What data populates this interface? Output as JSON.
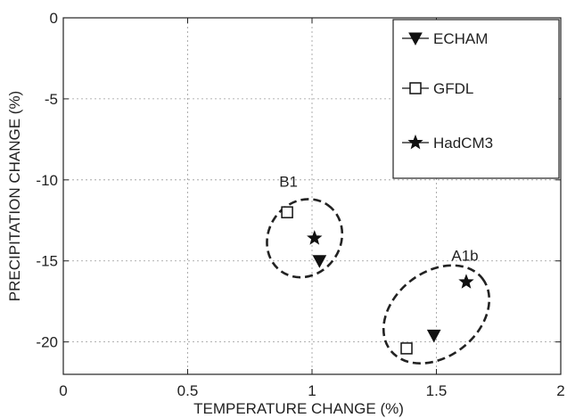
{
  "chart_data": {
    "type": "scatter",
    "xlabel": "TEMPERATURE CHANGE (%)",
    "ylabel": "PRECIPITATION CHANGE (%)",
    "xlim": [
      0,
      2
    ],
    "ylim": [
      -22,
      0
    ],
    "xticks": [
      0,
      0.5,
      1,
      1.5,
      2
    ],
    "xtick_labels": [
      "0",
      "0.5",
      "1",
      "1.5",
      "2"
    ],
    "yticks": [
      0,
      -5,
      -10,
      -15,
      -20
    ],
    "ytick_labels": [
      "0",
      "-5",
      "-10",
      "-15",
      "-20"
    ],
    "grid": true,
    "legend_position": "top-right",
    "series": [
      {
        "name": "ECHAM",
        "marker": "triangle-down-filled",
        "points": [
          {
            "x": 1.03,
            "y": -15.0
          },
          {
            "x": 1.49,
            "y": -19.6
          }
        ]
      },
      {
        "name": "GFDL",
        "marker": "square-open",
        "points": [
          {
            "x": 0.9,
            "y": -12.0
          },
          {
            "x": 1.38,
            "y": -20.4
          }
        ]
      },
      {
        "name": "HadCM3",
        "marker": "star-filled",
        "points": [
          {
            "x": 1.01,
            "y": -13.6
          },
          {
            "x": 1.62,
            "y": -16.3
          }
        ]
      }
    ],
    "groups": [
      {
        "label": "B1",
        "center": [
          0.97,
          -13.6
        ],
        "radius_x": 0.145,
        "radius_y": 2.5,
        "rotation_deg": 55
      },
      {
        "label": "A1b",
        "center": [
          1.5,
          -18.3
        ],
        "radius_x": 0.17,
        "radius_y": 3.6,
        "rotation_deg": 38
      }
    ]
  }
}
